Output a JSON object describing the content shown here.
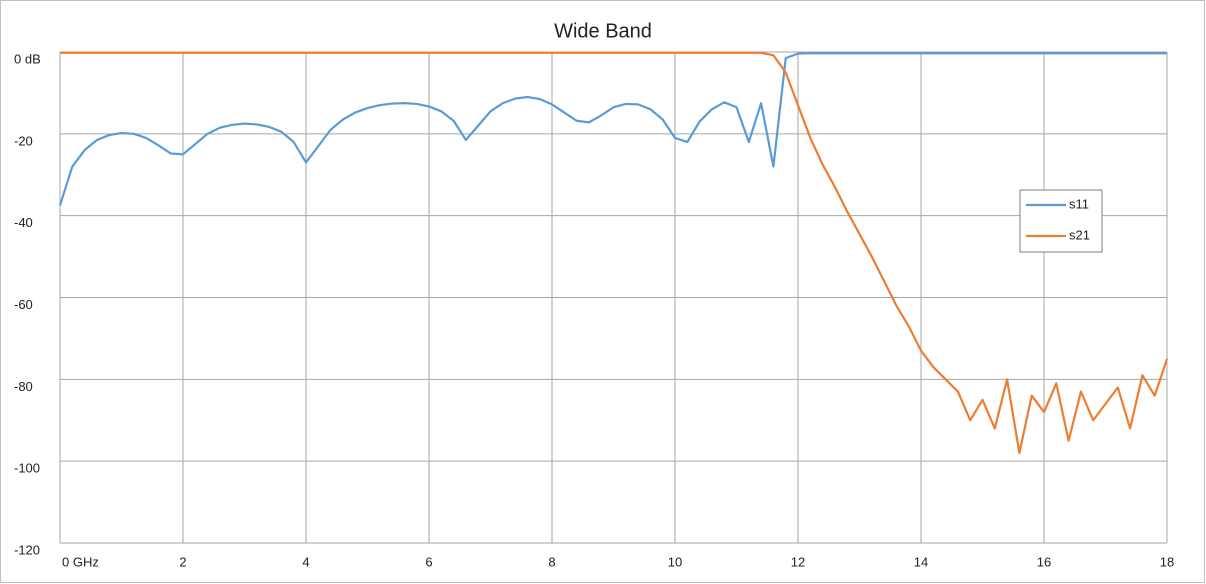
{
  "chart_data": {
    "type": "line",
    "title": "Wide Band",
    "x": [
      0,
      0.2,
      0.4,
      0.6,
      0.8,
      1.0,
      1.2,
      1.4,
      1.6,
      1.8,
      2.0,
      2.2,
      2.4,
      2.6,
      2.8,
      3.0,
      3.2,
      3.4,
      3.6,
      3.8,
      4.0,
      4.2,
      4.4,
      4.6,
      4.8,
      5.0,
      5.2,
      5.4,
      5.6,
      5.8,
      6.0,
      6.2,
      6.4,
      6.6,
      6.8,
      7.0,
      7.2,
      7.4,
      7.6,
      7.8,
      8.0,
      8.2,
      8.4,
      8.6,
      8.8,
      9.0,
      9.2,
      9.4,
      9.6,
      9.8,
      10.0,
      10.2,
      10.4,
      10.6,
      10.8,
      11.0,
      11.2,
      11.4,
      11.6,
      11.8,
      12.0,
      12.2,
      12.4,
      12.6,
      12.8,
      13.0,
      13.2,
      13.4,
      13.6,
      13.8,
      14.0,
      14.2,
      14.4,
      14.6,
      14.8,
      15.0,
      15.2,
      15.4,
      15.6,
      15.8,
      16.0,
      16.2,
      16.4,
      16.6,
      16.8,
      17.0,
      17.2,
      17.4,
      17.6,
      17.8,
      18.0
    ],
    "series": [
      {
        "name": "s11",
        "color": "#5b9bd5",
        "values": [
          -37.5,
          -28,
          -24,
          -21.5,
          -20.3,
          -19.8,
          -20,
          -21,
          -22.8,
          -24.8,
          -25,
          -22.5,
          -20,
          -18.5,
          -17.8,
          -17.5,
          -17.7,
          -18.3,
          -19.5,
          -22,
          -27,
          -23,
          -19,
          -16.5,
          -14.8,
          -13.7,
          -13,
          -12.6,
          -12.5,
          -12.7,
          -13.3,
          -14.5,
          -16.8,
          -21.5,
          -18,
          -14.5,
          -12.5,
          -11.4,
          -11,
          -11.5,
          -12.8,
          -14.8,
          -16.8,
          -17.2,
          -15.5,
          -13.5,
          -12.7,
          -12.8,
          -14,
          -16.5,
          -21,
          -22,
          -17,
          -14,
          -12.3,
          -13.5,
          -22,
          -12.5,
          -28,
          -1.5,
          -0.4,
          -0.3,
          -0.3,
          -0.3,
          -0.3,
          -0.3,
          -0.3,
          -0.3,
          -0.3,
          -0.3,
          -0.3,
          -0.3,
          -0.3,
          -0.3,
          -0.3,
          -0.3,
          -0.3,
          -0.3,
          -0.3,
          -0.3,
          -0.3,
          -0.3,
          -0.3,
          -0.3,
          -0.3,
          -0.3,
          -0.3,
          -0.3,
          -0.3,
          -0.3,
          -0.3
        ]
      },
      {
        "name": "s21",
        "color": "#ed7d31",
        "values": [
          -0.2,
          -0.2,
          -0.2,
          -0.2,
          -0.2,
          -0.2,
          -0.2,
          -0.2,
          -0.2,
          -0.2,
          -0.2,
          -0.2,
          -0.2,
          -0.2,
          -0.2,
          -0.2,
          -0.2,
          -0.2,
          -0.2,
          -0.2,
          -0.2,
          -0.2,
          -0.2,
          -0.2,
          -0.2,
          -0.2,
          -0.2,
          -0.2,
          -0.2,
          -0.2,
          -0.2,
          -0.2,
          -0.2,
          -0.2,
          -0.2,
          -0.2,
          -0.2,
          -0.2,
          -0.2,
          -0.2,
          -0.2,
          -0.2,
          -0.2,
          -0.2,
          -0.2,
          -0.2,
          -0.2,
          -0.2,
          -0.2,
          -0.2,
          -0.2,
          -0.2,
          -0.2,
          -0.2,
          -0.2,
          -0.2,
          -0.2,
          -0.2,
          -0.8,
          -5,
          -13,
          -21,
          -27.5,
          -33,
          -39,
          -44.5,
          -50,
          -56,
          -62,
          -67,
          -73,
          -77,
          -80,
          -83,
          -90,
          -85,
          -92,
          -80,
          -98,
          -84,
          -88,
          -81,
          -95,
          -83,
          -90,
          -86,
          -82,
          -92,
          -79,
          -84,
          -75
        ]
      }
    ],
    "xlim": [
      0,
      18
    ],
    "xticks": [
      {
        "value": 0,
        "label": "0 GHz"
      },
      2,
      4,
      6,
      8,
      10,
      12,
      14,
      16,
      18
    ],
    "ylim": [
      -120,
      0
    ],
    "yticks": [
      {
        "value": 0,
        "label": "0 dB"
      },
      -20,
      -40,
      -60,
      -80,
      -100,
      -120
    ],
    "grid": true,
    "legend": "right"
  }
}
